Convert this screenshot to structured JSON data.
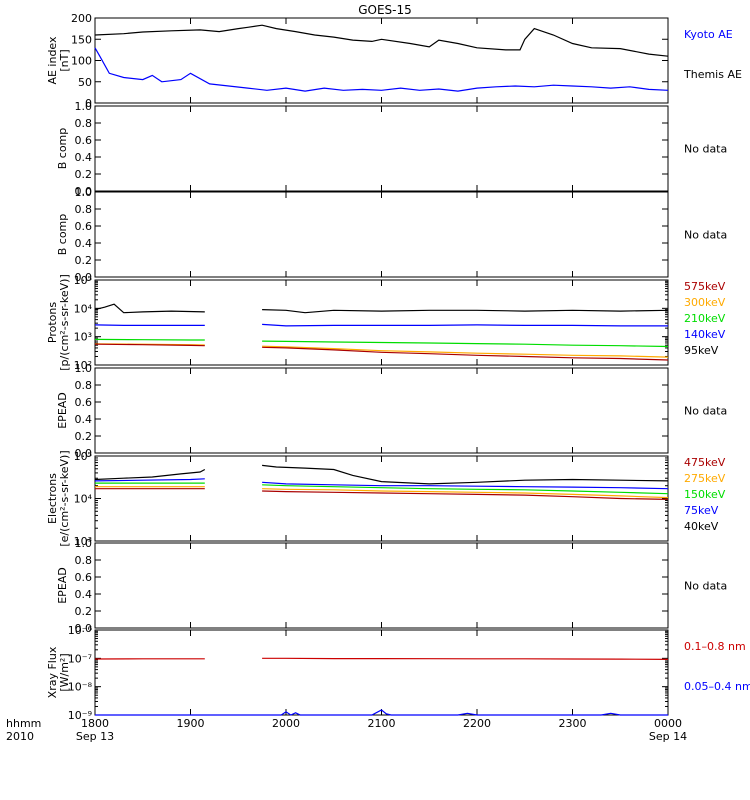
{
  "title": "GOES-15",
  "x_axis": {
    "tick_labels": [
      "1800",
      "1900",
      "2000",
      "2100",
      "2200",
      "2300",
      "0000"
    ],
    "date_labels": [
      "Sep 13",
      "",
      "",
      "",
      "",
      "",
      "Sep 14"
    ],
    "corner_labels": [
      "hhmm",
      "2010"
    ]
  },
  "colors": {
    "black": "#000000",
    "blue": "#0000ff",
    "green": "#00dd00",
    "orange": "#ffaa00",
    "red": "#cc0000",
    "darkred": "#aa0000"
  },
  "panels": [
    {
      "id": "ae",
      "ylabel": [
        "AE index",
        "[nT]"
      ],
      "scale": "linear",
      "ylim": [
        0,
        200
      ],
      "ticks": [
        "0",
        "50",
        "100",
        "150",
        "200"
      ],
      "no_data": "",
      "legend": [
        {
          "label": "Kyoto AE",
          "color": "#0000ff"
        },
        {
          "label": "Themis AE",
          "color": "#000000"
        }
      ]
    },
    {
      "id": "bcomp1",
      "ylabel": [
        "B comp"
      ],
      "scale": "linear",
      "ylim": [
        0,
        1
      ],
      "ticks": [
        "0.0",
        "0.2",
        "0.4",
        "0.6",
        "0.8",
        "1.0"
      ],
      "no_data": "No data",
      "legend": []
    },
    {
      "id": "bcomp2",
      "ylabel": [
        "B comp"
      ],
      "scale": "linear",
      "ylim": [
        0,
        1
      ],
      "ticks": [
        "0.0",
        "0.2",
        "0.4",
        "0.6",
        "0.8",
        "1.0"
      ],
      "no_data": "No data",
      "legend": []
    },
    {
      "id": "protons",
      "ylabel": [
        "Protons",
        "[p/(cm²-s-sr-keV)]"
      ],
      "scale": "log",
      "ylim": [
        100,
        100000
      ],
      "ticks": [
        "10²",
        "10³",
        "10⁴",
        "10⁵"
      ],
      "no_data": "",
      "legend": [
        {
          "label": "575keV",
          "color": "#aa0000"
        },
        {
          "label": "300keV",
          "color": "#ffaa00"
        },
        {
          "label": "210keV",
          "color": "#00dd00"
        },
        {
          "label": "140keV",
          "color": "#0000ff"
        },
        {
          "label": "95keV",
          "color": "#000000"
        }
      ]
    },
    {
      "id": "epead1",
      "ylabel": [
        "EPEAD"
      ],
      "scale": "linear",
      "ylim": [
        0,
        1
      ],
      "ticks": [
        "0.0",
        "0.2",
        "0.4",
        "0.6",
        "0.8",
        "1.0"
      ],
      "no_data": "No data",
      "legend": []
    },
    {
      "id": "electrons",
      "ylabel": [
        "Electrons",
        "[e/(cm²-s-sr-keV)]"
      ],
      "scale": "log",
      "ylim": [
        1000,
        100000
      ],
      "ticks": [
        "10³",
        "10⁴",
        "10⁵"
      ],
      "no_data": "",
      "legend": [
        {
          "label": "475keV",
          "color": "#aa0000"
        },
        {
          "label": "275keV",
          "color": "#ffaa00"
        },
        {
          "label": "150keV",
          "color": "#00dd00"
        },
        {
          "label": "75keV",
          "color": "#0000ff"
        },
        {
          "label": "40keV",
          "color": "#000000"
        }
      ]
    },
    {
      "id": "epead2",
      "ylabel": [
        "EPEAD"
      ],
      "scale": "linear",
      "ylim": [
        0,
        1
      ],
      "ticks": [
        "0.0",
        "0.2",
        "0.4",
        "0.6",
        "0.8",
        "1.0"
      ],
      "no_data": "No data",
      "legend": []
    },
    {
      "id": "xray",
      "ylabel": [
        "Xray Flux",
        "[W/m²]"
      ],
      "scale": "log",
      "ylim": [
        1e-09,
        1e-06
      ],
      "ticks": [
        "10⁻⁹",
        "10⁻⁸",
        "10⁻⁷",
        "10⁻⁶"
      ],
      "no_data": "",
      "legend": [
        {
          "label": "0.1–0.8 nm",
          "color": "#cc0000"
        },
        {
          "label": "0.05–0.4 nm",
          "color": "#0000ff"
        }
      ]
    }
  ],
  "chart_data": {
    "type": "line",
    "x_unit": "UT hour",
    "x_range": [
      18,
      24
    ],
    "xtick_values": [
      18,
      19,
      20,
      21,
      22,
      23,
      24
    ],
    "panels": {
      "ae": {
        "series": [
          {
            "name": "Themis AE",
            "color": "#000000",
            "x": [
              18.0,
              18.3,
              18.5,
              18.8,
              19.1,
              19.3,
              19.5,
              19.6,
              19.75,
              19.9,
              20.1,
              20.3,
              20.5,
              20.7,
              20.9,
              21.0,
              21.3,
              21.5,
              21.6,
              21.8,
              22.0,
              22.3,
              22.45,
              22.5,
              22.6,
              22.8,
              23.0,
              23.2,
              23.5,
              23.8,
              24.0
            ],
            "y": [
              160,
              163,
              167,
              170,
              172,
              168,
              175,
              178,
              183,
              175,
              168,
              160,
              155,
              148,
              145,
              150,
              140,
              132,
              148,
              140,
              130,
              125,
              125,
              150,
              175,
              160,
              140,
              130,
              128,
              115,
              110
            ]
          },
          {
            "name": "Kyoto AE",
            "color": "#0000ff",
            "x": [
              18.0,
              18.05,
              18.15,
              18.3,
              18.5,
              18.6,
              18.7,
              18.9,
              19.0,
              19.2,
              19.4,
              19.6,
              19.8,
              20.0,
              20.2,
              20.4,
              20.6,
              20.8,
              21.0,
              21.2,
              21.4,
              21.6,
              21.8,
              22.0,
              22.2,
              22.4,
              22.6,
              22.8,
              23.0,
              23.2,
              23.4,
              23.6,
              23.8,
              24.0
            ],
            "y": [
              130,
              110,
              70,
              60,
              55,
              65,
              50,
              55,
              70,
              45,
              40,
              35,
              30,
              35,
              28,
              35,
              30,
              32,
              30,
              35,
              30,
              33,
              28,
              35,
              38,
              40,
              38,
              42,
              40,
              38,
              35,
              38,
              32,
              30
            ]
          }
        ]
      },
      "protons": {
        "series": [
          {
            "name": "95keV",
            "color": "#000000",
            "x": [
              18.0,
              18.1,
              18.2,
              18.3,
              18.5,
              18.8,
              19.15,
              null,
              19.75,
              20.0,
              20.2,
              20.5,
              21.0,
              21.5,
              22.0,
              22.5,
              23.0,
              23.5,
              24.0
            ],
            "y": [
              9000,
              11000,
              14000,
              7000,
              7500,
              8000,
              7500,
              null,
              9000,
              8500,
              7000,
              8500,
              8000,
              8500,
              8500,
              8000,
              8500,
              8000,
              8500
            ]
          },
          {
            "name": "140keV",
            "color": "#0000ff",
            "x": [
              18.0,
              18.3,
              18.5,
              19.0,
              19.15,
              null,
              19.75,
              20.0,
              20.5,
              21.0,
              21.5,
              22.0,
              22.5,
              23.0,
              23.5,
              24.0
            ],
            "y": [
              2600,
              2500,
              2500,
              2500,
              2500,
              null,
              2700,
              2400,
              2500,
              2500,
              2500,
              2600,
              2500,
              2500,
              2400,
              2400
            ]
          },
          {
            "name": "210keV",
            "color": "#00dd00",
            "x": [
              18.0,
              18.5,
              19.0,
              19.15,
              null,
              19.75,
              20.0,
              20.5,
              21.0,
              21.5,
              22.0,
              22.5,
              23.0,
              23.5,
              24.0
            ],
            "y": [
              800,
              780,
              760,
              760,
              null,
              700,
              680,
              650,
              620,
              600,
              570,
              540,
              500,
              480,
              450
            ]
          },
          {
            "name": "300keV",
            "color": "#ffaa00",
            "x": [
              18.0,
              18.5,
              19.0,
              19.15,
              null,
              19.75,
              20.0,
              20.5,
              21.0,
              21.5,
              22.0,
              22.5,
              23.0,
              23.5,
              24.0
            ],
            "y": [
              560,
              540,
              520,
              510,
              null,
              460,
              440,
              380,
              320,
              290,
              260,
              240,
              220,
              210,
              190
            ]
          },
          {
            "name": "575keV",
            "color": "#aa0000",
            "x": [
              18.0,
              18.5,
              19.0,
              19.15,
              null,
              19.75,
              20.0,
              20.5,
              21.0,
              21.5,
              22.0,
              22.5,
              23.0,
              23.5,
              24.0
            ],
            "y": [
              540,
              520,
              490,
              480,
              null,
              420,
              400,
              340,
              280,
              250,
              220,
              200,
              180,
              170,
              150
            ]
          }
        ]
      },
      "electrons": {
        "series": [
          {
            "name": "40keV",
            "color": "#000000",
            "x": [
              18.0,
              18.3,
              18.6,
              18.9,
              19.1,
              19.15,
              null,
              19.75,
              19.9,
              20.2,
              20.5,
              20.7,
              21.0,
              21.5,
              22.0,
              22.5,
              23.0,
              23.5,
              24.0
            ],
            "y": [
              28000,
              30000,
              32000,
              38000,
              42000,
              48000,
              null,
              60000,
              55000,
              52000,
              48000,
              35000,
              25000,
              22000,
              24000,
              27000,
              28000,
              27000,
              26000
            ]
          },
          {
            "name": "75keV",
            "color": "#0000ff",
            "x": [
              18.0,
              18.5,
              19.0,
              19.15,
              null,
              19.75,
              20.0,
              20.5,
              21.0,
              21.5,
              22.0,
              22.5,
              23.0,
              23.5,
              24.0
            ],
            "y": [
              26000,
              27000,
              28000,
              29000,
              null,
              24000,
              22000,
              21000,
              20000,
              20000,
              19500,
              19000,
              18500,
              18000,
              17000
            ]
          },
          {
            "name": "150keV",
            "color": "#00dd00",
            "x": [
              18.0,
              18.5,
              19.0,
              19.15,
              null,
              19.75,
              20.0,
              20.5,
              21.0,
              21.5,
              22.0,
              22.5,
              23.0,
              23.5,
              24.0
            ],
            "y": [
              23000,
              23000,
              23000,
              23000,
              null,
              21000,
              20000,
              19000,
              18000,
              17000,
              16500,
              16000,
              15000,
              14000,
              13000
            ]
          },
          {
            "name": "275keV",
            "color": "#ffaa00",
            "x": [
              18.0,
              18.5,
              19.0,
              19.15,
              null,
              19.75,
              20.0,
              20.5,
              21.0,
              21.5,
              22.0,
              22.5,
              23.0,
              23.5,
              24.0
            ],
            "y": [
              19000,
              19000,
              19000,
              19000,
              null,
              17000,
              16500,
              16000,
              15000,
              14500,
              14000,
              13500,
              12500,
              11500,
              10500
            ]
          },
          {
            "name": "475keV",
            "color": "#aa0000",
            "x": [
              18.0,
              18.5,
              19.0,
              19.15,
              null,
              19.75,
              20.0,
              20.5,
              21.0,
              21.5,
              22.0,
              22.5,
              23.0,
              23.5,
              24.0
            ],
            "y": [
              17000,
              17000,
              17000,
              17000,
              null,
              15000,
              14500,
              14000,
              13500,
              13000,
              12500,
              12000,
              11000,
              10000,
              9500
            ]
          }
        ]
      },
      "xray": {
        "series": [
          {
            "name": "0.1–0.8 nm",
            "color": "#cc0000",
            "x": [
              18.0,
              18.5,
              19.0,
              19.15,
              null,
              19.75,
              20.0,
              20.5,
              21.0,
              21.5,
              22.0,
              22.5,
              23.0,
              23.5,
              24.0
            ],
            "y": [
              9.5e-08,
              9.6e-08,
              9.6e-08,
              9.6e-08,
              null,
              1e-07,
              1e-07,
              9.8e-08,
              9.8e-08,
              9.7e-08,
              9.6e-08,
              9.6e-08,
              9.5e-08,
              9.4e-08,
              9.2e-08
            ]
          },
          {
            "name": "0.05–0.4 nm",
            "color": "#0000ff",
            "x": [
              18.0,
              19.95,
              20.0,
              20.05,
              20.1,
              20.15,
              20.9,
              21.0,
              21.05,
              21.1,
              21.8,
              21.9,
              22.0,
              23.3,
              23.4,
              23.5,
              24.0
            ],
            "y": [
              1e-09,
              1e-09,
              1.3e-09,
              1e-09,
              1.2e-09,
              1e-09,
              1e-09,
              1.5e-09,
              1.1e-09,
              1e-09,
              1e-09,
              1.15e-09,
              1e-09,
              1e-09,
              1.15e-09,
              1e-09,
              1e-09
            ]
          }
        ]
      }
    }
  }
}
